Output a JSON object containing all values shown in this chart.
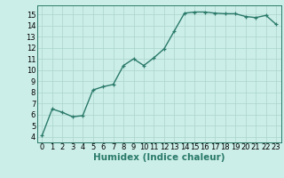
{
  "x": [
    0,
    1,
    2,
    3,
    4,
    5,
    6,
    7,
    8,
    9,
    10,
    11,
    12,
    13,
    14,
    15,
    16,
    17,
    18,
    19,
    20,
    21,
    22,
    23
  ],
  "y": [
    4.1,
    6.5,
    6.2,
    5.8,
    5.9,
    8.2,
    8.5,
    8.7,
    10.4,
    11.0,
    10.4,
    11.1,
    11.9,
    13.5,
    15.1,
    15.2,
    15.2,
    15.1,
    15.05,
    15.05,
    14.8,
    14.7,
    14.9,
    14.1
  ],
  "line_color": "#2a7a6a",
  "bg_color": "#cceee8",
  "grid_color": "#aad4cc",
  "xlabel": "Humidex (Indice chaleur)",
  "xlim": [
    -0.5,
    23.5
  ],
  "ylim": [
    3.5,
    15.8
  ],
  "yticks": [
    4,
    5,
    6,
    7,
    8,
    9,
    10,
    11,
    12,
    13,
    14,
    15
  ],
  "xticks": [
    0,
    1,
    2,
    3,
    4,
    5,
    6,
    7,
    8,
    9,
    10,
    11,
    12,
    13,
    14,
    15,
    16,
    17,
    18,
    19,
    20,
    21,
    22,
    23
  ],
  "marker": "+",
  "markersize": 3,
  "linewidth": 1.0,
  "xlabel_fontsize": 7.5,
  "tick_fontsize": 6.0
}
